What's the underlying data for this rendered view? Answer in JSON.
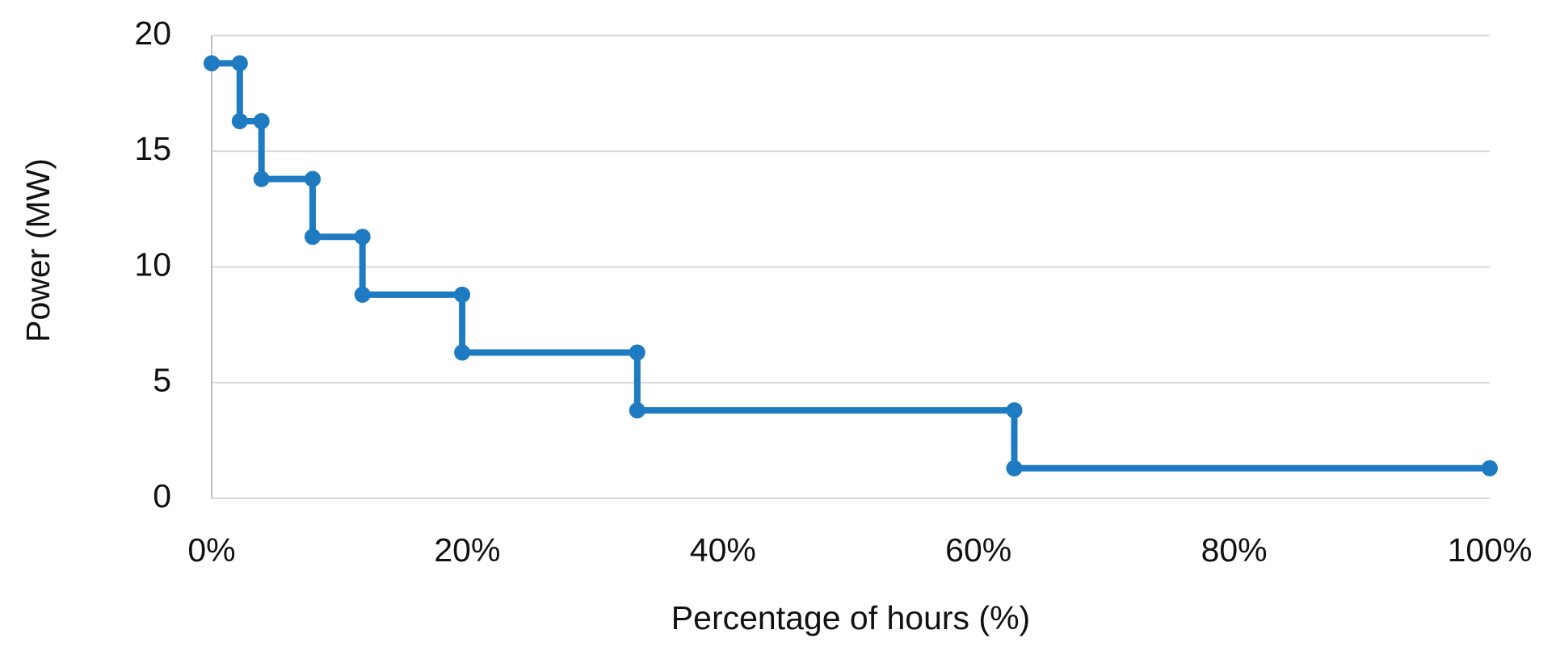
{
  "chart_data": {
    "type": "line",
    "x_label": "Percentage of hours (%)",
    "y_label": "Power (MW)",
    "series": [
      {
        "color": "#1f7bc1",
        "x": [
          0,
          2.2,
          2.2,
          3.9,
          3.9,
          7.9,
          7.9,
          11.8,
          11.8,
          19.6,
          19.6,
          33.3,
          33.3,
          62.8,
          62.8,
          100
        ],
        "values": [
          18.8,
          18.8,
          16.3,
          16.3,
          13.8,
          13.8,
          11.3,
          11.3,
          8.8,
          8.8,
          6.3,
          6.3,
          3.8,
          3.8,
          1.3,
          1.3
        ]
      }
    ],
    "xlim": [
      0,
      100
    ],
    "xticks": [
      {
        "value": 0,
        "label": "0%"
      },
      {
        "value": 20,
        "label": "20%"
      },
      {
        "value": 40,
        "label": "40%"
      },
      {
        "value": 60,
        "label": "60%"
      },
      {
        "value": 80,
        "label": "80%"
      },
      {
        "value": 100,
        "label": "100%"
      }
    ],
    "ylim": [
      0,
      20
    ],
    "yticks": [
      0,
      5,
      10,
      15,
      20
    ],
    "grid": true
  }
}
